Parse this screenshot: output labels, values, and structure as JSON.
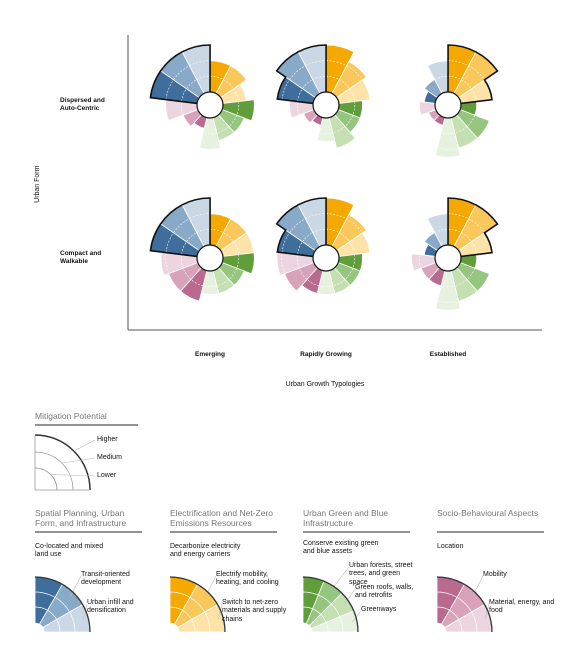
{
  "axes": {
    "y_title": "Urban Form",
    "x_title": "Urban Growth Typologies",
    "rows": [
      "Dispersed and Auto-Centric",
      "Compact and Walkable"
    ],
    "columns": [
      "Emerging",
      "Rapidly Growing",
      "Established"
    ]
  },
  "max_level": 3,
  "charts": [
    [
      {
        "highlight": 0,
        "levels": [
          [
            3,
            3,
            3
          ],
          [
            2,
            2,
            1.5
          ],
          [
            2,
            1.5,
            1.5,
            2
          ],
          [
            0.7,
            1,
            2
          ]
        ]
      },
      {
        "highlight": 0,
        "levels": [
          [
            2.3,
            3,
            3
          ],
          [
            3,
            2.3,
            2
          ],
          [
            1.5,
            1.5,
            2,
            1.5
          ],
          [
            0.5,
            0.7,
            1.5
          ]
        ]
      },
      {
        "highlight": 1,
        "levels": [
          [
            0.7,
            1,
            2
          ],
          [
            3,
            3,
            2
          ],
          [
            1,
            2,
            2,
            2.5
          ],
          [
            0.5,
            0.5,
            1
          ]
        ]
      }
    ],
    [
      {
        "highlight": 0,
        "levels": [
          [
            3,
            3,
            3
          ],
          [
            2,
            2,
            2
          ],
          [
            2,
            1.5,
            1.5,
            1.5
          ],
          [
            2,
            2,
            2.3
          ]
        ]
      },
      {
        "highlight": 0,
        "levels": [
          [
            2.3,
            3,
            3
          ],
          [
            3,
            2.3,
            2
          ],
          [
            1.5,
            1.5,
            1.5,
            1.5
          ],
          [
            1.5,
            2,
            2.3
          ]
        ]
      },
      {
        "highlight": 1,
        "levels": [
          [
            0.7,
            1,
            2
          ],
          [
            3,
            3,
            2
          ],
          [
            1,
            2,
            2,
            2.5
          ],
          [
            1,
            1,
            1.5
          ]
        ]
      }
    ]
  ],
  "legend": {
    "title": "Mitigation Potential",
    "levels": [
      "Higher",
      "Medium",
      "Lower"
    ]
  },
  "categories": [
    {
      "title": "Spatial Planning, Urban Form, and Infrastructure",
      "colors": [
        "#3f6e9c",
        "#89a9c8",
        "#cad8e6"
      ],
      "items": [
        "Co-located and mixed land use",
        "Transit-oriented development",
        "Urban infill and densification"
      ]
    },
    {
      "title": "Electrification and Net-Zero Emissions Resources",
      "colors": [
        "#f5a800",
        "#f9c75a",
        "#fde3a8"
      ],
      "items": [
        "Decarbonize electricity and energy carriers",
        "Electrify mobility, heating, and cooling",
        "Switch to net-zero materials and supply chains"
      ]
    },
    {
      "title": "Urban Green and Blue Infrastructure",
      "colors": [
        "#5f9e3a",
        "#95c57e",
        "#c4dfb2",
        "#e7f1df"
      ],
      "items": [
        "Conserve existing green and blue assets",
        "Urban forests, street trees, and green space",
        "Green roofs, walls, and retrofits",
        "Greenways"
      ]
    },
    {
      "title": "Socio-Behavioural Aspects",
      "colors": [
        "#b86b8f",
        "#d7a2ba",
        "#edd5e0"
      ],
      "items": [
        "Location",
        "Mobility",
        "Material, energy, and food"
      ]
    }
  ]
}
